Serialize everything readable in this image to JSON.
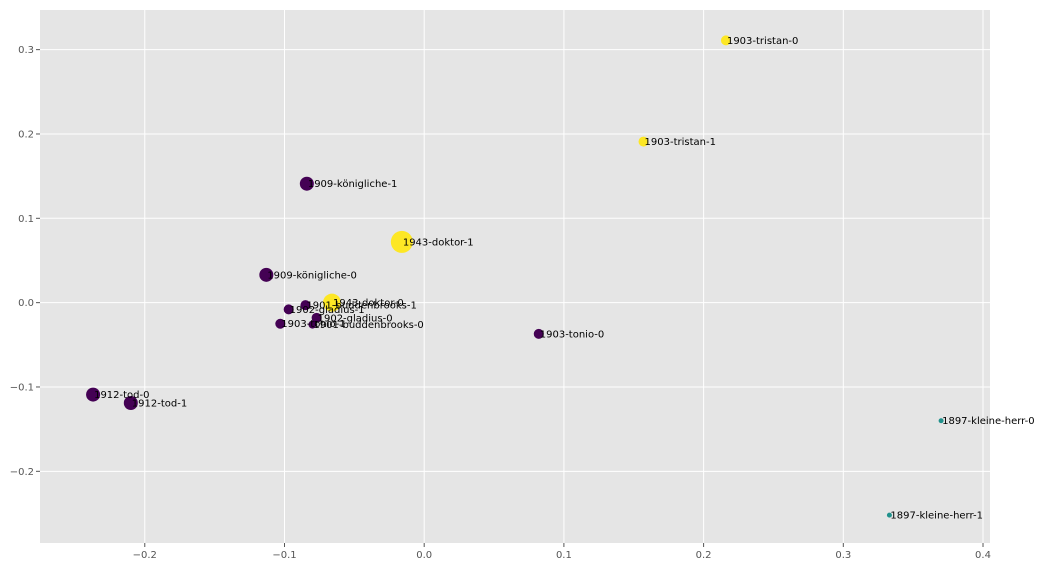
{
  "chart_data": {
    "type": "scatter",
    "title": "",
    "xlabel": "",
    "ylabel": "",
    "xlim": [
      -0.275,
      0.405
    ],
    "ylim": [
      -0.285,
      0.347
    ],
    "xticks": [
      -0.2,
      -0.1,
      0.0,
      0.1,
      0.2,
      0.3,
      0.4
    ],
    "xtick_labels": [
      "−0.2",
      "−0.1",
      "0.0",
      "0.1",
      "0.2",
      "0.3",
      "0.4"
    ],
    "yticks": [
      -0.2,
      -0.1,
      0.0,
      0.1,
      0.2,
      0.3
    ],
    "ytick_labels": [
      "−0.2",
      "−0.1",
      "0.0",
      "0.1",
      "0.2",
      "0.3"
    ],
    "grid": true,
    "colors": {
      "background": "#e5e5e5",
      "grid": "#ffffff",
      "purple": "#440154",
      "teal": "#21918c",
      "yellow": "#fde725"
    },
    "points": [
      {
        "label": "1903-tristan-0",
        "x": 0.216,
        "y": 0.311,
        "size": 5,
        "group": "yellow"
      },
      {
        "label": "1903-tristan-1",
        "x": 0.157,
        "y": 0.191,
        "size": 5,
        "group": "yellow"
      },
      {
        "label": "1909-königliche-1",
        "x": -0.084,
        "y": 0.141,
        "size": 7,
        "group": "purple"
      },
      {
        "label": "1943-doktor-1",
        "x": -0.016,
        "y": 0.072,
        "size": 11,
        "group": "yellow"
      },
      {
        "label": "1909-königliche-0",
        "x": -0.113,
        "y": 0.033,
        "size": 7,
        "group": "purple"
      },
      {
        "label": "1943-doktor-0",
        "x": -0.066,
        "y": 0.0,
        "size": 9,
        "group": "yellow"
      },
      {
        "label": "1901-buddenbrooks-1",
        "x": -0.085,
        "y": -0.003,
        "size": 5,
        "group": "purple"
      },
      {
        "label": "1902-gladius-1",
        "x": -0.097,
        "y": -0.008,
        "size": 5,
        "group": "purple"
      },
      {
        "label": "1902-gladius-0",
        "x": -0.077,
        "y": -0.018,
        "size": 5,
        "group": "purple"
      },
      {
        "label": "1903-tonio-1",
        "x": -0.103,
        "y": -0.025,
        "size": 5,
        "group": "purple"
      },
      {
        "label": "1901-buddenbrooks-0",
        "x": -0.08,
        "y": -0.026,
        "size": 4,
        "group": "purple"
      },
      {
        "label": "1903-tonio-0",
        "x": 0.082,
        "y": -0.037,
        "size": 5,
        "group": "purple"
      },
      {
        "label": "1912-tod-0",
        "x": -0.237,
        "y": -0.109,
        "size": 7,
        "group": "purple"
      },
      {
        "label": "1912-tod-1",
        "x": -0.21,
        "y": -0.119,
        "size": 7,
        "group": "purple"
      },
      {
        "label": "1897-kleine-herr-0",
        "x": 0.37,
        "y": -0.14,
        "size": 2.5,
        "group": "teal"
      },
      {
        "label": "1897-kleine-herr-1",
        "x": 0.333,
        "y": -0.252,
        "size": 2.5,
        "group": "teal"
      }
    ]
  }
}
